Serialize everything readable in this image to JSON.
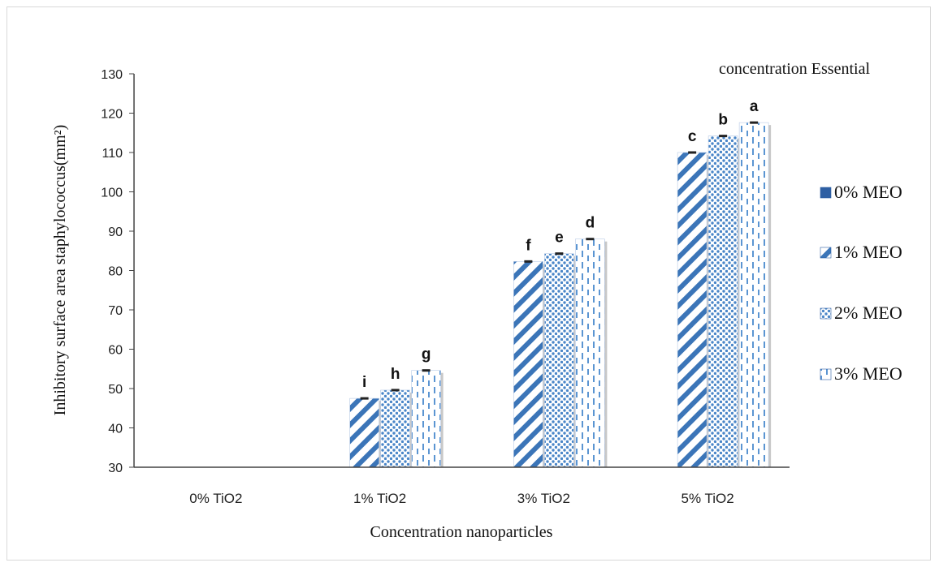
{
  "chart_data": {
    "type": "bar",
    "title": "",
    "legend_title": "concentration Essential",
    "xlabel": "Concentration nanoparticles",
    "ylabel": "Inhibitory surface area staphylococcus(mm²)",
    "ylim": [
      30,
      130
    ],
    "yticks": [
      "30",
      "40",
      "50",
      "60",
      "70",
      "80",
      "90",
      "100",
      "110",
      "120",
      "130"
    ],
    "categories": [
      "0% TiO2",
      "1% TiO2",
      "3% TiO2",
      "5% TiO2"
    ],
    "legend_position": "right",
    "series": [
      {
        "name": "0% MEO",
        "values": [
          null,
          null,
          null,
          null
        ],
        "letters": [
          "",
          "",
          "",
          ""
        ],
        "color": "#2e5fa3"
      },
      {
        "name": "1% MEO",
        "values": [
          null,
          47.5,
          82.3,
          110
        ],
        "letters": [
          "",
          "i",
          "f",
          "c"
        ],
        "color": "#3b75b8"
      },
      {
        "name": "2% MEO",
        "values": [
          null,
          49.6,
          84.3,
          114.2
        ],
        "letters": [
          "",
          "h",
          "e",
          "b"
        ],
        "color": "#4a86c8"
      },
      {
        "name": "3% MEO",
        "values": [
          null,
          54.6,
          88,
          117.6
        ],
        "letters": [
          "",
          "g",
          "d",
          "a"
        ],
        "color": "#5b95d2"
      }
    ]
  }
}
